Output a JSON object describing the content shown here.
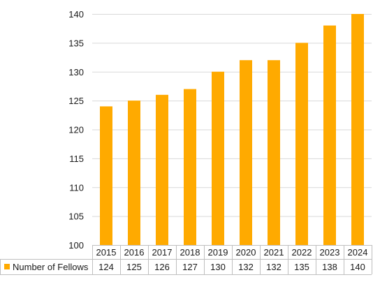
{
  "chart_data": {
    "type": "bar",
    "categories": [
      "2015",
      "2016",
      "2017",
      "2018",
      "2019",
      "2020",
      "2021",
      "2022",
      "2023",
      "2024"
    ],
    "series": [
      {
        "name": "Number of Fellows",
        "values": [
          124,
          125,
          126,
          127,
          130,
          132,
          132,
          135,
          138,
          140
        ],
        "color": "#FFAA00"
      }
    ],
    "ylim": [
      100,
      140
    ],
    "yticks": [
      100,
      105,
      110,
      115,
      120,
      125,
      130,
      135,
      140
    ],
    "grid": true,
    "legend": "data-table",
    "title": "",
    "xlabel": "",
    "ylabel": ""
  }
}
